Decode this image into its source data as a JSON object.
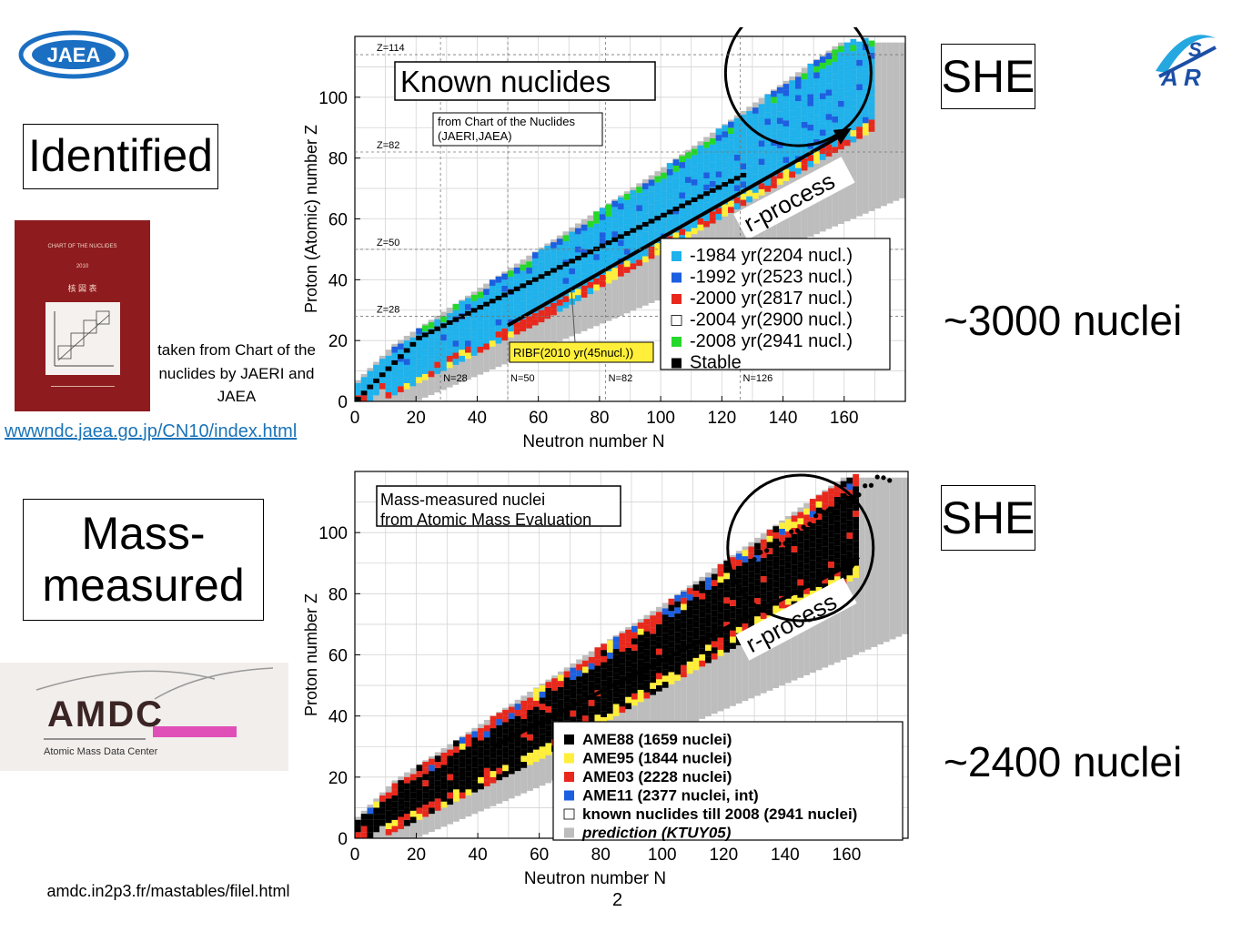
{
  "logos": {
    "jaea": "JAEA",
    "asr_top": "S",
    "asr_bottom": "A R"
  },
  "labels": {
    "identified": "Identified",
    "mass_measured": "Mass-\nmeasured",
    "she_top": "SHE",
    "she_bottom": "SHE",
    "count_top": "~3000 nuclei",
    "count_bottom": "~2400 nuclei",
    "source_note": "taken from Chart of the nuclides by JAERI and JAEA",
    "source_link": "wwwndc.jaea.go.jp/CN10/index.html",
    "amdc_url": "amdc.in2p3.fr/mastables/filel.html",
    "page_number": "2"
  },
  "book": {
    "title": "CHART OF THE NUCLIDES",
    "year": "2010",
    "subtitle": "核 図 表"
  },
  "amdc_logo": {
    "name": "AMDC",
    "tagline": "Atomic Mass Data Center"
  },
  "colors": {
    "light_blue": "#1fb2ec",
    "blue": "#1c5fe0",
    "red": "#e8281c",
    "yellow": "#ffef3a",
    "green": "#25d82a",
    "black": "#000000",
    "gray": "#bdbdbd",
    "book_red": "#8e1b1e",
    "link": "#1a73b8",
    "amdc_pink": "#e04fb8"
  },
  "chart_data": [
    {
      "type": "scatter",
      "title": "Known nuclides",
      "note": "from Chart of the Nuclides (JAERI,JAEA)",
      "xlabel": "Neutron number N",
      "ylabel": "Proton (Atomic) number Z",
      "xlim": [
        0,
        180
      ],
      "ylim": [
        0,
        120
      ],
      "xticks": [
        0,
        20,
        40,
        60,
        80,
        100,
        120,
        140,
        160
      ],
      "yticks": [
        0,
        20,
        40,
        60,
        80,
        100
      ],
      "magic_z": [
        {
          "label": "Z=28",
          "value": 28
        },
        {
          "label": "Z=50",
          "value": 50
        },
        {
          "label": "Z=82",
          "value": 82
        },
        {
          "label": "Z=114",
          "value": 114
        }
      ],
      "magic_n": [
        {
          "label": "N=28",
          "value": 28
        },
        {
          "label": "N=50",
          "value": 50
        },
        {
          "label": "N=82",
          "value": 82
        },
        {
          "label": "N=126",
          "value": 126
        }
      ],
      "annotation": "r-process",
      "ribf_label": "RIBF(2010 yr(45nucl.))",
      "legend": [
        {
          "label": "-1984 yr(2204 nucl.)",
          "color": "#1fb2ec"
        },
        {
          "label": "-1992 yr(2523 nucl.)",
          "color": "#1c5fe0"
        },
        {
          "label": "-2000 yr(2817 nucl.)",
          "color": "#e8281c"
        },
        {
          "label": "-2004 yr(2900 nucl.)",
          "color": "#ffffff"
        },
        {
          "label": "-2008 yr(2941 nucl.)",
          "color": "#25d82a"
        },
        {
          "label": "Stable",
          "color": "#000000"
        }
      ]
    },
    {
      "type": "scatter",
      "title": "Mass-measured nuclei from Atomic Mass Evaluation",
      "xlabel": "Neutron number N",
      "ylabel": "Proton number Z",
      "xlim": [
        0,
        180
      ],
      "ylim": [
        0,
        120
      ],
      "xticks": [
        0,
        20,
        40,
        60,
        80,
        100,
        120,
        140,
        160
      ],
      "yticks": [
        0,
        20,
        40,
        60,
        80,
        100
      ],
      "annotation": "r-process",
      "legend": [
        {
          "label": "AME88 (1659 nuclei)",
          "color": "#000000"
        },
        {
          "label": "AME95 (1844 nuclei)",
          "color": "#ffef3a"
        },
        {
          "label": "AME03 (2228 nuclei)",
          "color": "#e8281c"
        },
        {
          "label": "AME11 (2377 nuclei, int)",
          "color": "#1c5fe0"
        },
        {
          "label": "known nuclides till 2008 (2941 nuclei)",
          "color": "#ffffff"
        },
        {
          "label": "prediction (KTUY05)",
          "color": "#bdbdbd"
        }
      ]
    }
  ]
}
